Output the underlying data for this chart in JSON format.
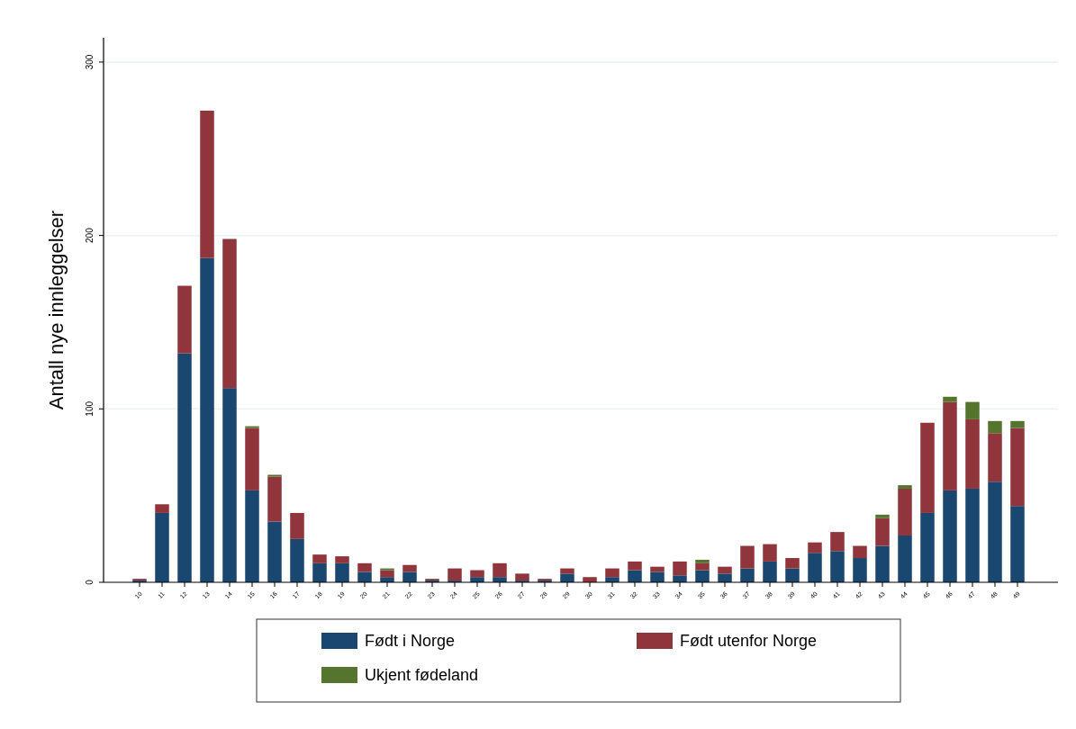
{
  "chart_data": {
    "type": "bar",
    "stacked": true,
    "ylabel": "Antall nye innleggelser",
    "categories": [
      "10",
      "11",
      "12",
      "13",
      "14",
      "15",
      "16",
      "17",
      "18",
      "19",
      "20",
      "21",
      "22",
      "23",
      "24",
      "25",
      "26",
      "27",
      "28",
      "29",
      "30",
      "31",
      "32",
      "33",
      "34",
      "35",
      "36",
      "37",
      "38",
      "39",
      "40",
      "41",
      "42",
      "43",
      "44",
      "45",
      "46",
      "47",
      "48",
      "49"
    ],
    "series": [
      {
        "name": "Født i Norge",
        "color": "#1a476f",
        "values": [
          1,
          40,
          132,
          187,
          112,
          53,
          35,
          25,
          11,
          11,
          6,
          3,
          6,
          1,
          1,
          3,
          3,
          1,
          1,
          5,
          0,
          3,
          7,
          6,
          4,
          7,
          5,
          8,
          12,
          8,
          17,
          18,
          14,
          21,
          27,
          40,
          53,
          54,
          58,
          44
        ]
      },
      {
        "name": "Født utenfor Norge",
        "color": "#90353b",
        "values": [
          1,
          5,
          39,
          85,
          86,
          36,
          26,
          15,
          5,
          4,
          5,
          4,
          4,
          1,
          7,
          4,
          8,
          4,
          1,
          3,
          3,
          5,
          5,
          3,
          8,
          4,
          4,
          13,
          10,
          6,
          6,
          11,
          7,
          16,
          27,
          52,
          51,
          40,
          28,
          45
        ]
      },
      {
        "name": "Ukjent fødeland",
        "color": "#55752f",
        "values": [
          0,
          0,
          0,
          0,
          0,
          1,
          1,
          0,
          0,
          0,
          0,
          1,
          0,
          0,
          0,
          0,
          0,
          0,
          0,
          0,
          0,
          0,
          0,
          0,
          0,
          2,
          0,
          0,
          0,
          0,
          0,
          0,
          0,
          2,
          2,
          0,
          3,
          10,
          7,
          4
        ]
      }
    ],
    "ylim": [
      0,
      314
    ],
    "yticks": [
      0,
      100,
      200,
      300
    ],
    "grid": "y",
    "legend": "bottom"
  }
}
